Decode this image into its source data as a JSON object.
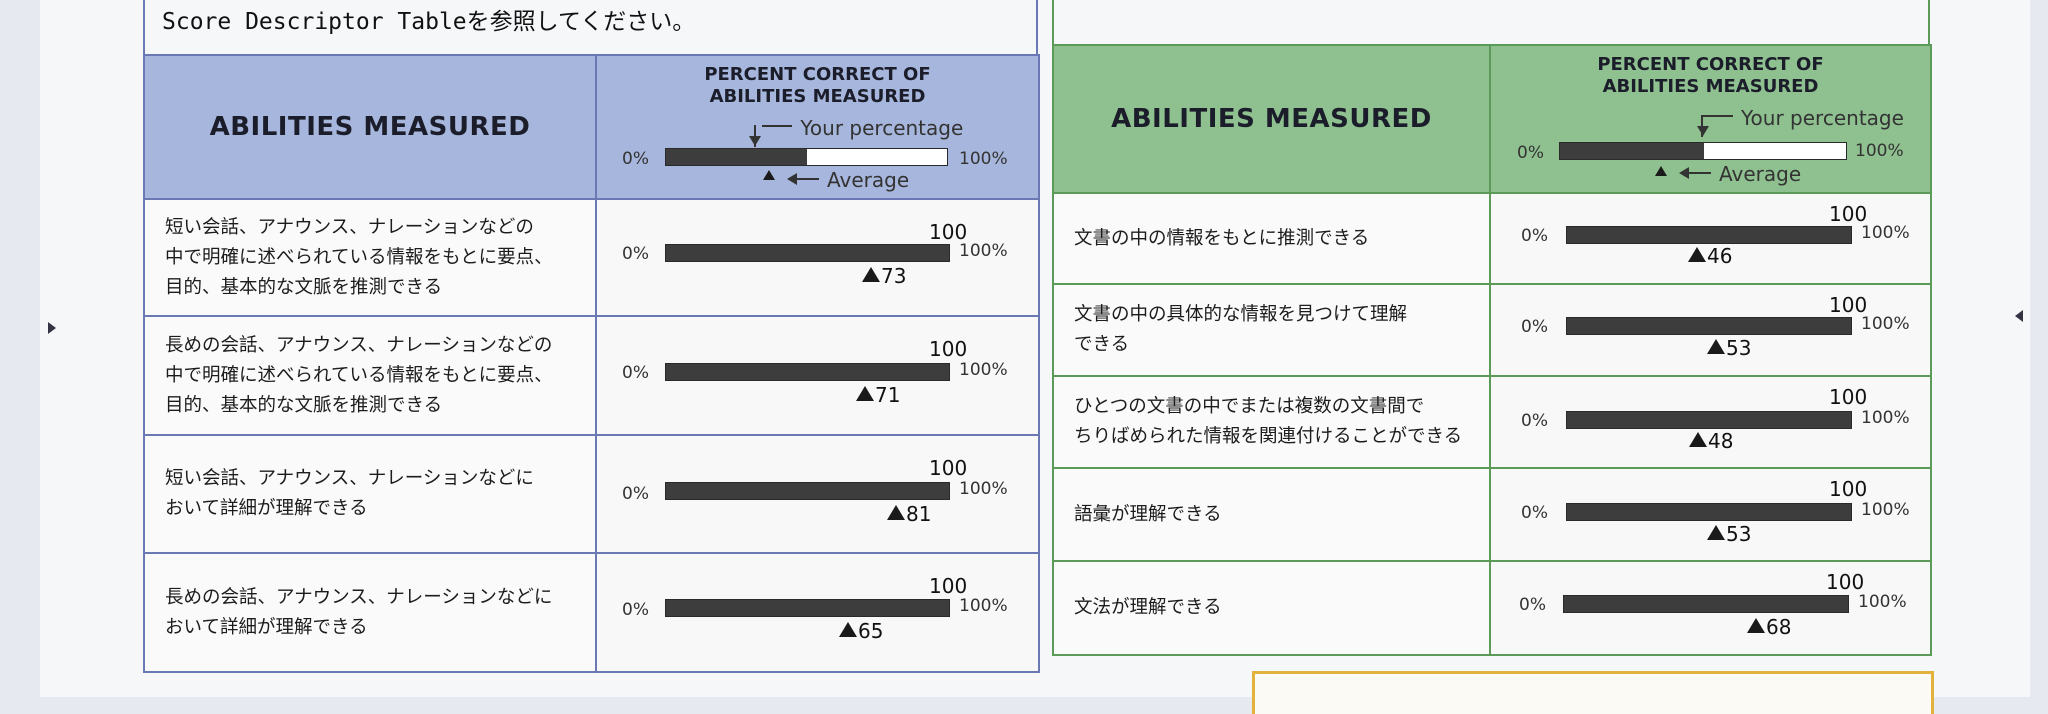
{
  "intro_text": "Score Descriptor Tableを参照してください。",
  "header": {
    "abilities_title": "ABILITIES MEASURED",
    "percent_title_line1": "PERCENT CORRECT OF",
    "percent_title_line2": "ABILITIES MEASURED",
    "your_percentage": "Your percentage",
    "average": "Average",
    "zero_label": "0%",
    "hundred_label": "100%"
  },
  "row_labels": {
    "zero": "0%",
    "hundred_pct": "100%"
  },
  "listening": {
    "rows": [
      {
        "line1": "短い会話、アナウンス、ナレーションなどの",
        "line2": "中で明確に述べられている情報をもとに要点、",
        "line3": "目的、基本的な文脈を推測できる",
        "score": "100",
        "average": "73"
      },
      {
        "line1": "長めの会話、アナウンス、ナレーションなどの",
        "line2": "中で明確に述べられている情報をもとに要点、",
        "line3": "目的、基本的な文脈を推測できる",
        "score": "100",
        "average": "71"
      },
      {
        "line1": "短い会話、アナウンス、ナレーションなどに",
        "line2": "おいて詳細が理解できる",
        "line3": "",
        "score": "100",
        "average": "81"
      },
      {
        "line1": "長めの会話、アナウンス、ナレーションなどに",
        "line2": "おいて詳細が理解できる",
        "line3": "",
        "score": "100",
        "average": "65"
      }
    ]
  },
  "reading": {
    "rows": [
      {
        "line1": "文書の中の情報をもとに推測できる",
        "line2": "",
        "score": "100",
        "average": "46"
      },
      {
        "line1": "文書の中の具体的な情報を見つけて理解",
        "line2": "できる",
        "score": "100",
        "average": "53"
      },
      {
        "line1": "ひとつの文書の中でまたは複数の文書間で",
        "line2": "ちりばめられた情報を関連付けることができる",
        "score": "100",
        "average": "48"
      },
      {
        "line1": "語彙が理解できる",
        "line2": "",
        "score": "100",
        "average": "53"
      },
      {
        "line1": "文法が理解できる",
        "line2": "",
        "score": "100",
        "average": "68"
      }
    ]
  },
  "colors": {
    "blue_header": "#a7b6dc",
    "green_header": "#8fc190",
    "blue_border": "#6a78b4",
    "green_border": "#5b9a58"
  }
}
